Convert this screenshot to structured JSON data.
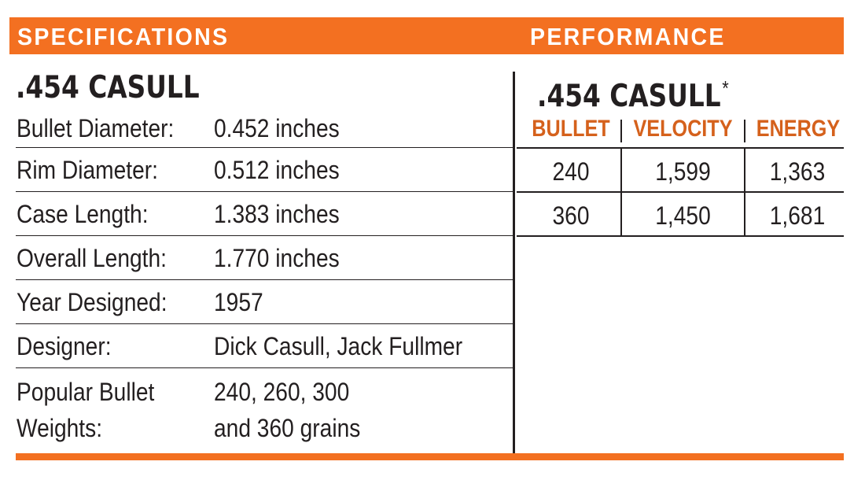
{
  "header": {
    "specifications_label": "SPECIFICATIONS",
    "performance_label": "PERFORMANCE"
  },
  "specifications": {
    "title": ".454 CASULL",
    "rows": [
      {
        "label": "Bullet Diameter:",
        "value": "0.452 inches"
      },
      {
        "label": "Rim Diameter:",
        "value": "0.512 inches"
      },
      {
        "label": "Case Length:",
        "value": "1.383 inches"
      },
      {
        "label": "Overall Length:",
        "value": "1.770 inches"
      },
      {
        "label": "Year Designed:",
        "value": "1957"
      },
      {
        "label": "Designer:",
        "value": "Dick Casull, Jack Fullmer"
      },
      {
        "label": "Popular Bullet\nWeights:",
        "value": "240, 260, 300\nand 360 grains"
      }
    ]
  },
  "performance": {
    "title": ".454 CASULL",
    "title_marker": "*",
    "columns": [
      "BULLET",
      "VELOCITY",
      "ENERGY"
    ],
    "rows": [
      [
        "240",
        "1,599",
        "1,363"
      ],
      [
        "360",
        "1,450",
        "1,681"
      ]
    ]
  },
  "colors": {
    "accent_orange": "#f37021",
    "heading_orange": "#d5611c",
    "text_dark": "#231f20"
  }
}
